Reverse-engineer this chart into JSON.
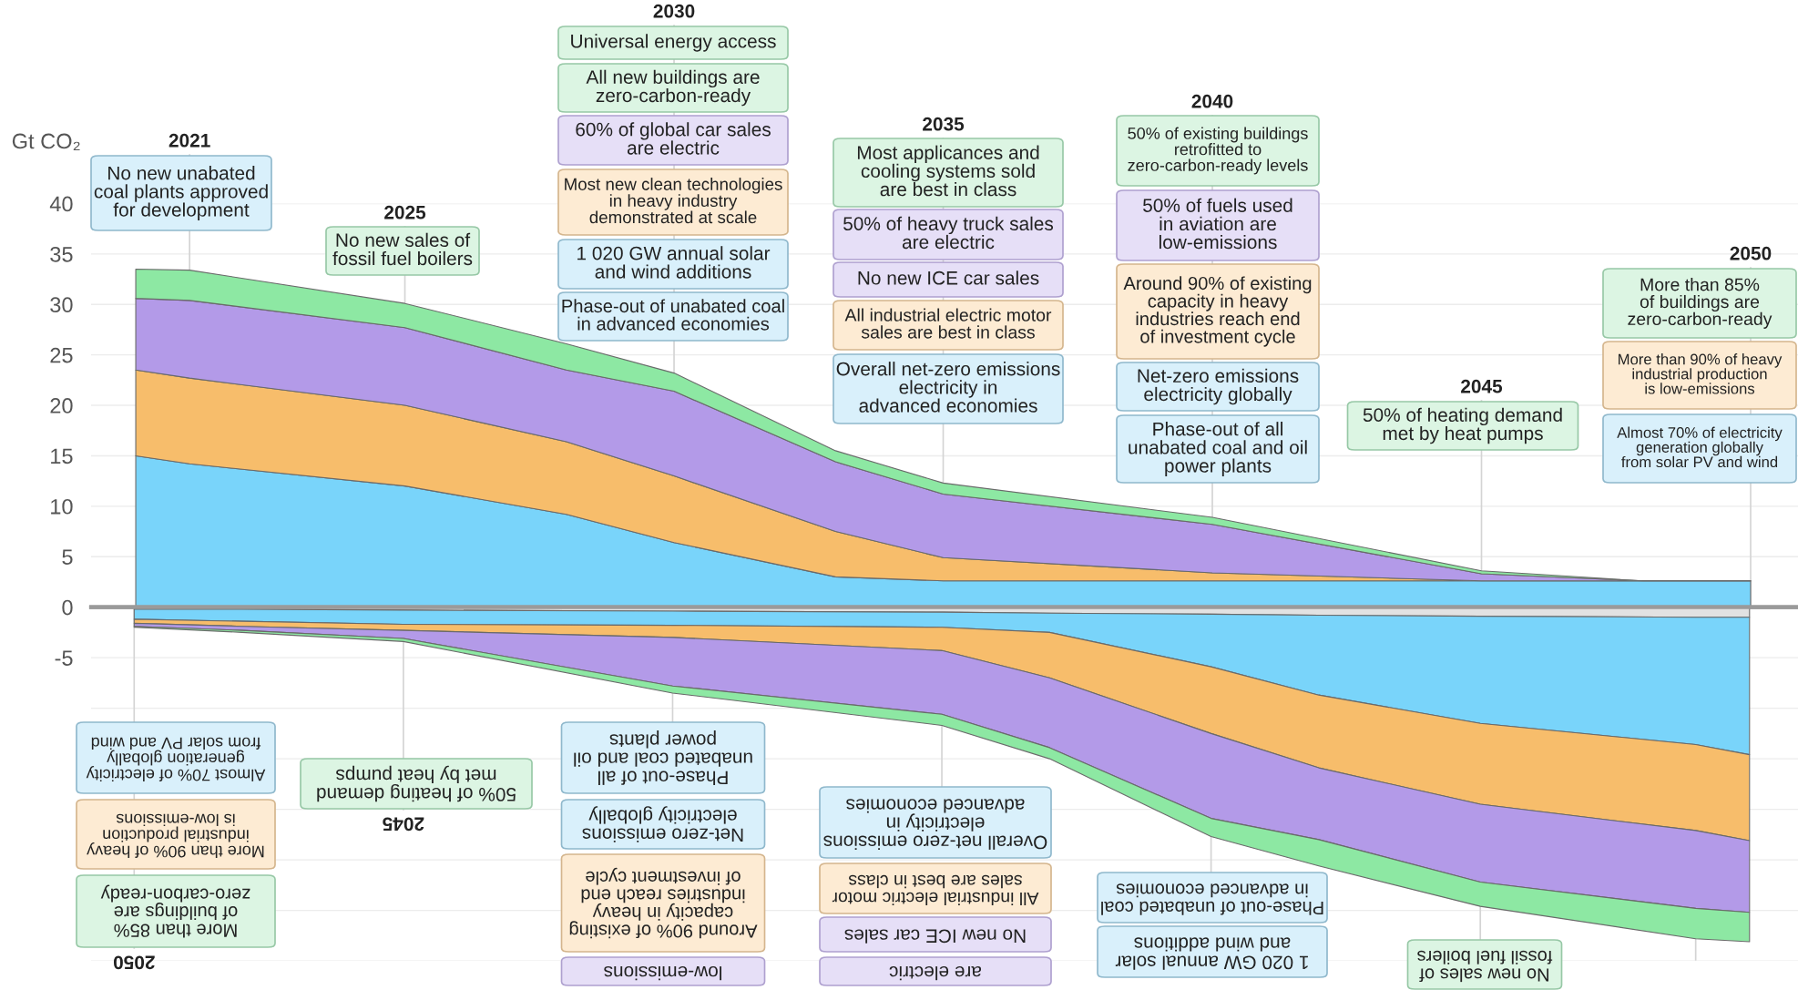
{
  "chart_data": [
    {
      "type": "area",
      "stacked": true,
      "ylabel": "Gt CO₂",
      "grid": "y",
      "legend": false,
      "tick_labels": "y",
      "xlim": [
        2019.17,
        2050.88
      ],
      "ylim": [
        0,
        40
      ],
      "yticks": [
        5,
        10,
        15,
        20,
        25,
        30,
        35,
        40
      ],
      "x": [
        2020,
        2021,
        2025,
        2028,
        2030,
        2033,
        2035,
        2040,
        2045,
        2048,
        2050
      ],
      "series": [
        {
          "color": "#79d4fa",
          "values": [
            15.0,
            14.2,
            12.0,
            9.2,
            6.4,
            3.0,
            2.6,
            2.6,
            2.6,
            2.6,
            2.6
          ]
        },
        {
          "color": "#f7bd6b",
          "values": [
            8.5,
            8.5,
            8.0,
            7.2,
            6.6,
            4.5,
            2.3,
            0.8,
            0,
            0,
            0
          ]
        },
        {
          "color": "#b39ae8",
          "values": [
            7.1,
            7.7,
            7.7,
            7.1,
            8.4,
            6.9,
            6.3,
            4.8,
            0.7,
            0,
            0
          ]
        },
        {
          "color": "#8de8a3",
          "values": [
            2.9,
            3.0,
            2.4,
            2.6,
            1.8,
            1.1,
            1.1,
            0.7,
            0.3,
            0,
            0
          ]
        }
      ],
      "ref_lines": [
        {
          "axis": "x",
          "value": 2021,
          "label": "2021",
          "color": "#d4d4d4"
        },
        {
          "axis": "x",
          "value": 2025,
          "label": "2025",
          "color": "#d4d4d4"
        },
        {
          "axis": "x",
          "value": 2030,
          "label": "2030",
          "color": "#d4d4d4"
        },
        {
          "axis": "x",
          "value": 2035,
          "label": "2035",
          "color": "#d4d4d4"
        },
        {
          "axis": "x",
          "value": 2040,
          "label": "2040",
          "color": "#d4d4d4"
        },
        {
          "axis": "x",
          "value": 2045,
          "label": "2045",
          "color": "#d4d4d4"
        },
        {
          "axis": "x",
          "value": 2050,
          "label": "2050",
          "color": "#d4d4d4"
        }
      ],
      "annotations": [
        "No new unabated\ncoal plants approved\nfor development",
        "No new sales of\nfossil fuel boilers",
        "Universal energy access",
        "All new buildings are\nzero-carbon-ready",
        "60% of global car sales\nare electric",
        "Most new clean technologies\nin heavy industry\ndemonstrated at scale",
        "1 020 GW annual solar\nand wind additions",
        "Phase-out of unabated coal\nin advanced economies",
        "Most applicances and\ncooling systems sold\nare best in class",
        "50% of heavy truck sales\nare electric",
        "No new ICE car sales",
        "All industrial electric motor\nsales are best in class",
        "Overall net-zero emissions\nelectricity in\nadvanced economies",
        "50% of existing buildings\nretrofitted to\nzero-carbon-ready levels",
        "50% of fuels used\nin aviation are\nlow-emissions",
        "Around 90% of existing\ncapacity in heavy\nindustries reach end\nof investment cycle",
        "Net-zero emissions\nelectricity globally",
        "Phase-out of all\nunabated coal and oil\npower plants",
        "50% of heating demand\nmet by heat pumps",
        "More than 85%\nof buildings are\nzero-carbon-ready",
        "More than 90% of heavy\nindustrial production\nis low-emissions",
        "Almost 70% of electricity\ngeneration globally\nfrom solar PV and wind"
      ]
    },
    {
      "type": "area",
      "stacked": true,
      "grid": "y",
      "legend": false,
      "tick_labels": "y",
      "xlim": [
        2050.8,
        2019.1
      ],
      "ylim": [
        -35,
        0
      ],
      "yticks": [
        {
          "value": -35,
          "label": null
        },
        {
          "value": -30,
          "label": null
        },
        {
          "value": -25,
          "label": null
        },
        {
          "value": -20,
          "label": null
        },
        {
          "value": -15,
          "label": null
        },
        {
          "value": -10,
          "label": null
        },
        -5,
        0
      ],
      "x": [
        2020,
        2021,
        2025,
        2028,
        2030,
        2033,
        2035,
        2040,
        2045,
        2048,
        2050
      ],
      "series": [
        {
          "color": "#e2e2e2",
          "values": [
            -1.0,
            -1.0,
            -0.9,
            -0.8,
            -0.7,
            -0.6,
            -0.5,
            -0.4,
            -0.3,
            -0.2,
            -0.2
          ]
        },
        {
          "color": "#79d4fa",
          "values": [
            -13.6,
            -12.6,
            -10.6,
            -7.9,
            -5.2,
            -1.9,
            -1.5,
            -1.4,
            -1.4,
            -1.2,
            -1.0
          ]
        },
        {
          "color": "#f7bd6b",
          "values": [
            -8.5,
            -8.5,
            -8.0,
            -7.2,
            -6.6,
            -4.5,
            -2.3,
            -1.2,
            -0.6,
            -0.5,
            -0.4
          ]
        },
        {
          "color": "#b39ae8",
          "values": [
            -7.1,
            -7.7,
            -7.7,
            -7.1,
            -8.4,
            -6.9,
            -6.3,
            -4.8,
            -0.8,
            -0.4,
            -0.3
          ]
        },
        {
          "color": "#8de8a3",
          "values": [
            -2.9,
            -3.0,
            -2.4,
            -2.6,
            -1.8,
            -1.1,
            -1.1,
            -0.7,
            -0.3,
            -0.2,
            -0.1
          ]
        }
      ],
      "ref_lines": [
        {
          "axis": "x",
          "value": 2050,
          "label": "2050",
          "color": "#d4d4d4"
        },
        {
          "axis": "x",
          "value": 2045,
          "label": "2045",
          "color": "#d4d4d4"
        },
        {
          "axis": "x",
          "value": 2040,
          "label": null,
          "color": "#d4d4d4"
        },
        {
          "axis": "x",
          "value": 2035,
          "label": null,
          "color": "#d4d4d4"
        },
        {
          "axis": "x",
          "value": 2030,
          "label": null,
          "color": "#d4d4d4"
        },
        {
          "axis": "x",
          "value": 2025,
          "label": null,
          "color": "#d4d4d4"
        },
        {
          "axis": "x",
          "value": 2021,
          "label": null,
          "color": "#d4d4d4"
        }
      ],
      "annotations": [
        "Almost 70% of electricity\ngeneration globally\nfrom solar PV and wind",
        "More than 90% of heavy\nindustrial production\nis low-emissions",
        "More than 85%\nof buildings are\nzero-carbon-ready",
        "50% of heating demand\nmet by heat pumps",
        "Phase-out of all\nunabated coal and oil\npower plants",
        "Net-zero emissions\nelectricity globally",
        "Around 90% of existing\ncapacity in heavy\nindustries reach end\nof investment cycle",
        "low-emissions",
        "Overall net-zero emissions\nelectricity in\nadvanced economies",
        "All industrial electric motor\nsales are best in class",
        "No new ICE car sales",
        "are electric",
        "Phase-out of unabated coal\nin advanced economies",
        "1 020 GW annual solar\nand wind additions",
        "No new sales of\nfossil fuel boilers"
      ]
    }
  ]
}
